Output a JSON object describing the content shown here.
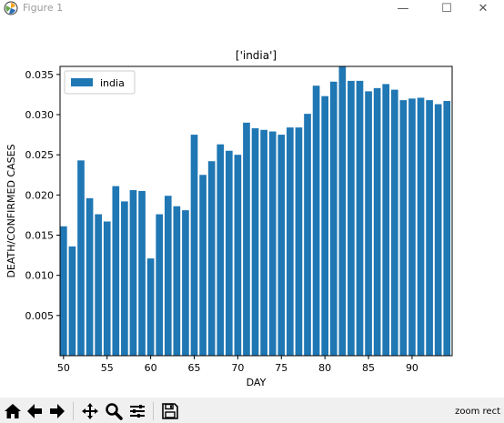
{
  "window": {
    "title": "Figure 1",
    "minimize_glyph": "—",
    "maximize_glyph": "☐",
    "close_glyph": "✕"
  },
  "toolbar": {
    "icons": [
      "home-icon",
      "back-arrow-icon",
      "forward-arrow-icon",
      "pan-icon",
      "zoom-icon",
      "subplots-icon",
      "save-icon"
    ],
    "status_text": "zoom rect"
  },
  "chart_data": {
    "type": "bar",
    "title": "['india']",
    "xlabel": "DAY",
    "ylabel": "DEATH/CONFIRMED CASES",
    "x": [
      50,
      51,
      52,
      53,
      54,
      55,
      56,
      57,
      58,
      59,
      60,
      61,
      62,
      63,
      64,
      65,
      66,
      67,
      68,
      69,
      70,
      71,
      72,
      73,
      74,
      75,
      76,
      77,
      78,
      79,
      80,
      81,
      82,
      83,
      84,
      85,
      86,
      87,
      88,
      89,
      90,
      91,
      92,
      93,
      94
    ],
    "series": [
      {
        "name": "india",
        "color": "#1f77b4",
        "values": [
          0.0161,
          0.0136,
          0.0243,
          0.0196,
          0.0176,
          0.0167,
          0.0211,
          0.0192,
          0.0206,
          0.0205,
          0.0121,
          0.0176,
          0.0199,
          0.0186,
          0.0181,
          0.0275,
          0.0225,
          0.0242,
          0.0263,
          0.0255,
          0.025,
          0.029,
          0.0283,
          0.0281,
          0.0279,
          0.0275,
          0.0284,
          0.0284,
          0.0301,
          0.0336,
          0.0323,
          0.0341,
          0.0361,
          0.0342,
          0.0342,
          0.0329,
          0.0333,
          0.0338,
          0.0331,
          0.0318,
          0.032,
          0.0321,
          0.0318,
          0.0313,
          0.0317
        ]
      }
    ],
    "xlim": [
      49.6,
      94.6
    ],
    "ylim": [
      0,
      0.036
    ],
    "xticks": [
      50,
      55,
      60,
      65,
      70,
      75,
      80,
      85,
      90
    ],
    "xtick_labels": [
      "50",
      "55",
      "60",
      "65",
      "70",
      "75",
      "80",
      "85",
      "90"
    ],
    "yticks": [
      0.005,
      0.01,
      0.015,
      0.02,
      0.025,
      0.03,
      0.035
    ],
    "ytick_labels": [
      "0.005",
      "0.010",
      "0.015",
      "0.020",
      "0.025",
      "0.030",
      "0.035"
    ],
    "grid": false,
    "legend_position": "top-left"
  }
}
